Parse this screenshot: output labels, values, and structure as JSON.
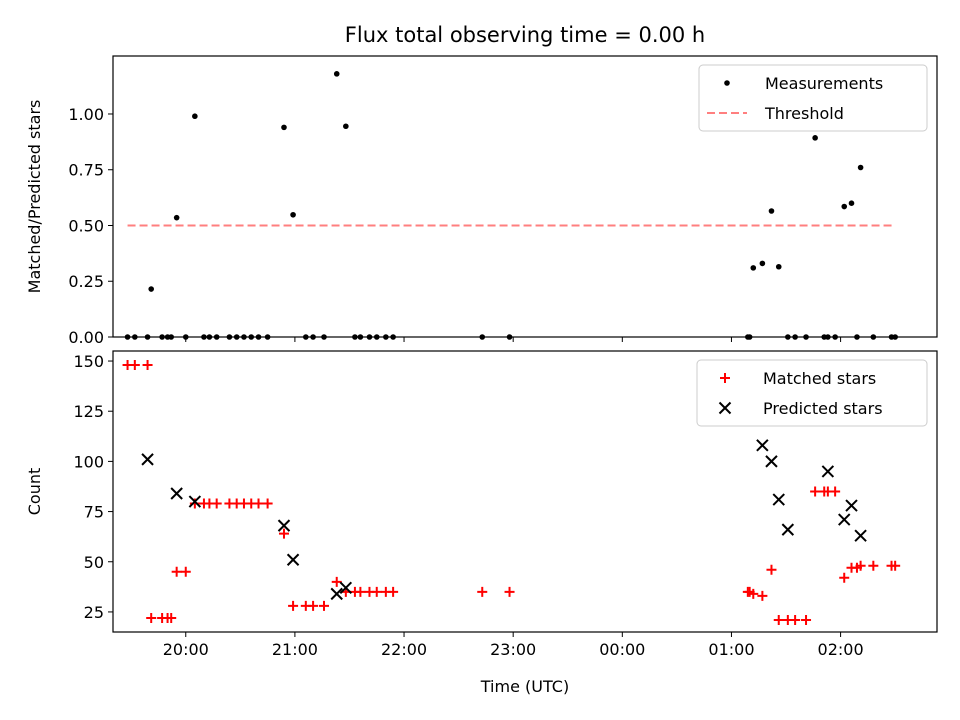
{
  "figure_title": "Flux total observing time = 0.00 h",
  "colors": {
    "measurements": "#000000",
    "threshold": "#ff7f7f",
    "matched": "#ff0000",
    "predicted": "#000000",
    "axes": "#000000",
    "background": "#ffffff"
  },
  "chart_data": [
    {
      "type": "scatter",
      "panel": "top",
      "title": "Flux total observing time = 0.00 h",
      "xlabel": "",
      "ylabel": "Matched/Predicted stars",
      "xlim": [
        "19:20",
        "02:53"
      ],
      "ylim": [
        0,
        1.26
      ],
      "x_ticks": [
        "20:00",
        "21:00",
        "22:00",
        "23:00",
        "00:00",
        "01:00",
        "02:00"
      ],
      "y_ticks": [
        "0.00",
        "0.25",
        "0.50",
        "0.75",
        "1.00"
      ],
      "legend": {
        "placement": "top-right",
        "entries": [
          "Measurements",
          "Threshold"
        ]
      },
      "grid": false,
      "series": [
        {
          "name": "Measurements",
          "marker": "dot",
          "color": "#000000",
          "x": [
            "19:28",
            "19:32",
            "19:39",
            "19:41",
            "19:47",
            "19:50",
            "19:52",
            "19:55",
            "20:00",
            "20:05",
            "20:10",
            "20:13",
            "20:17",
            "20:24",
            "20:28",
            "20:32",
            "20:36",
            "20:40",
            "20:45",
            "20:54",
            "20:59",
            "21:06",
            "21:10",
            "21:16",
            "21:23",
            "21:28",
            "21:33",
            "21:36",
            "21:41",
            "21:45",
            "21:50",
            "21:54",
            "22:43",
            "22:58",
            "01:09",
            "01:10",
            "01:12",
            "01:17",
            "01:22",
            "01:26",
            "01:31",
            "01:35",
            "01:41",
            "01:46",
            "01:51",
            "01:53",
            "01:57",
            "02:02",
            "02:06",
            "02:09",
            "02:11",
            "02:18",
            "02:28",
            "02:30"
          ],
          "y": [
            0,
            0,
            0,
            0.215,
            0,
            0,
            0,
            0.535,
            0,
            0.99,
            0,
            0,
            0,
            0,
            0,
            0,
            0,
            0,
            0,
            0.94,
            0.548,
            0,
            0,
            0,
            1.18,
            0.945,
            0,
            0,
            0,
            0,
            0,
            0,
            0,
            0,
            0,
            0,
            0.31,
            0.33,
            0.565,
            0.315,
            0,
            0,
            0,
            0.893,
            0,
            0,
            0,
            0.585,
            0.6,
            0,
            0.76,
            0,
            0,
            0
          ]
        },
        {
          "name": "Threshold",
          "style": "dashed",
          "color": "#ff7f7f",
          "x": [
            "19:28",
            "02:30"
          ],
          "y": [
            0.5,
            0.5
          ]
        }
      ]
    },
    {
      "type": "scatter",
      "panel": "bottom",
      "xlabel": "Time (UTC)",
      "ylabel": "Count",
      "xlim": [
        "19:20",
        "02:53"
      ],
      "ylim": [
        15,
        155
      ],
      "x_ticks": [
        "20:00",
        "21:00",
        "22:00",
        "23:00",
        "00:00",
        "01:00",
        "02:00"
      ],
      "y_ticks": [
        "25",
        "50",
        "75",
        "100",
        "125",
        "150"
      ],
      "legend": {
        "placement": "top-right",
        "entries": [
          "Matched stars",
          "Predicted stars"
        ]
      },
      "grid": false,
      "series": [
        {
          "name": "Matched stars",
          "marker": "plus",
          "color": "#ff0000",
          "x": [
            "19:28",
            "19:32",
            "19:39",
            "19:41",
            "19:47",
            "19:50",
            "19:52",
            "19:55",
            "20:00",
            "20:05",
            "20:10",
            "20:13",
            "20:17",
            "20:24",
            "20:28",
            "20:32",
            "20:36",
            "20:40",
            "20:45",
            "20:54",
            "20:59",
            "21:06",
            "21:10",
            "21:16",
            "21:23",
            "21:28",
            "21:33",
            "21:36",
            "21:41",
            "21:45",
            "21:50",
            "21:54",
            "22:43",
            "22:58",
            "01:09",
            "01:10",
            "01:12",
            "01:17",
            "01:22",
            "01:26",
            "01:31",
            "01:35",
            "01:41",
            "01:46",
            "01:51",
            "01:53",
            "01:57",
            "02:02",
            "02:06",
            "02:09",
            "02:11",
            "02:18",
            "02:28",
            "02:30"
          ],
          "y": [
            148,
            148,
            148,
            22,
            22,
            22,
            22,
            45,
            45,
            79,
            79,
            79,
            79,
            79,
            79,
            79,
            79,
            79,
            79,
            64,
            28,
            28,
            28,
            28,
            40,
            35,
            35,
            35,
            35,
            35,
            35,
            35,
            35,
            35,
            35,
            35,
            34,
            33,
            46,
            21,
            21,
            21,
            21,
            85,
            85,
            85,
            85,
            42,
            47,
            47,
            48,
            48,
            48,
            48
          ]
        },
        {
          "name": "Predicted stars",
          "marker": "x",
          "color": "#000000",
          "x": [
            "19:39",
            "19:55",
            "20:05",
            "20:54",
            "20:59",
            "21:23",
            "21:28",
            "01:17",
            "01:22",
            "01:26",
            "01:31",
            "01:53",
            "02:02",
            "02:06",
            "02:11"
          ],
          "y": [
            101,
            84,
            80,
            68,
            51,
            34,
            37,
            108,
            100,
            81,
            66,
            95,
            71,
            78,
            63
          ]
        }
      ]
    }
  ]
}
